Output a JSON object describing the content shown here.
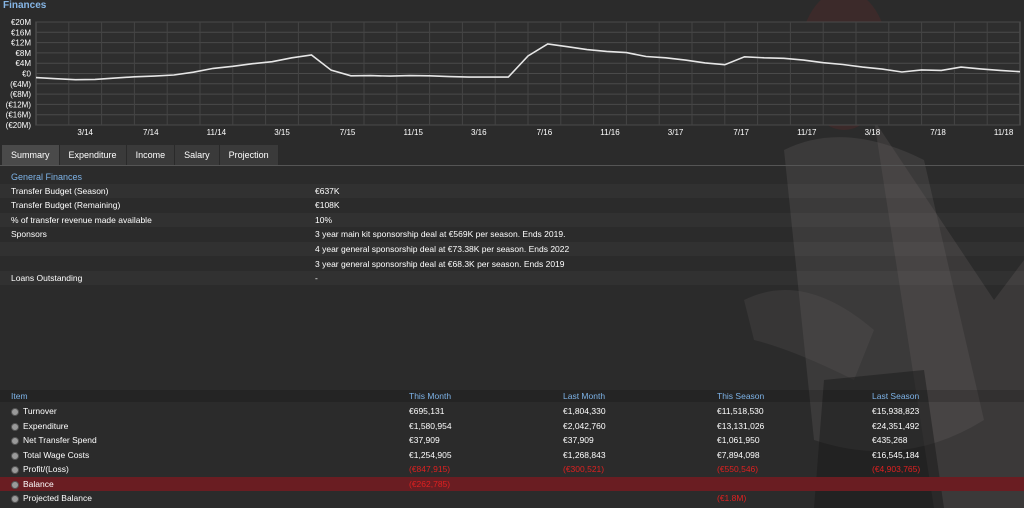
{
  "panel_title": "Finances",
  "chart_data": {
    "type": "line",
    "y_ticks": [
      "€20M",
      "€16M",
      "€12M",
      "€8M",
      "€4M",
      "€0",
      "(€4M)",
      "(€8M)",
      "(€12M)",
      "(€16M)",
      "(€20M)"
    ],
    "x_ticks": [
      "3/14",
      "7/14",
      "11/14",
      "3/15",
      "7/15",
      "11/15",
      "3/16",
      "7/16",
      "11/16",
      "3/17",
      "7/17",
      "11/17",
      "3/18",
      "7/18",
      "11/18"
    ],
    "ylim": [
      -20,
      20
    ],
    "yunit": "€M",
    "grid": true,
    "line_color": "#e6e6e6",
    "points": [
      [
        0,
        -1.6
      ],
      [
        0.5,
        -2.0
      ],
      [
        1,
        -2.4
      ],
      [
        1.5,
        -2.3
      ],
      [
        2,
        -1.8
      ],
      [
        2.5,
        -1.3
      ],
      [
        3,
        -1.0
      ],
      [
        3.5,
        -0.6
      ],
      [
        4,
        0.5
      ],
      [
        4.5,
        2.0
      ],
      [
        5,
        2.8
      ],
      [
        5.5,
        3.8
      ],
      [
        6,
        4.6
      ],
      [
        6.5,
        6.1
      ],
      [
        7,
        7.2
      ],
      [
        7.5,
        1.3
      ],
      [
        8,
        -0.9
      ],
      [
        8.5,
        -0.8
      ],
      [
        9,
        -1.0
      ],
      [
        9.5,
        -0.8
      ],
      [
        10,
        -0.9
      ],
      [
        10.5,
        -1.2
      ],
      [
        11,
        -1.4
      ],
      [
        11.5,
        -1.4
      ],
      [
        12,
        -1.4
      ],
      [
        12.5,
        6.8
      ],
      [
        13,
        11.5
      ],
      [
        13.5,
        10.4
      ],
      [
        14,
        9.3
      ],
      [
        14.5,
        8.6
      ],
      [
        15,
        8.1
      ],
      [
        15.5,
        6.6
      ],
      [
        16,
        6.1
      ],
      [
        16.5,
        5.2
      ],
      [
        17,
        4.1
      ],
      [
        17.5,
        3.4
      ],
      [
        18,
        6.5
      ],
      [
        18.5,
        6.1
      ],
      [
        19,
        5.9
      ],
      [
        19.5,
        5.2
      ],
      [
        20,
        4.2
      ],
      [
        20.5,
        3.5
      ],
      [
        21,
        2.5
      ],
      [
        21.5,
        1.7
      ],
      [
        22,
        0.6
      ],
      [
        22.5,
        1.4
      ],
      [
        23,
        1.2
      ],
      [
        23.5,
        2.5
      ],
      [
        24,
        1.8
      ],
      [
        24.5,
        1.2
      ],
      [
        25,
        0.7
      ]
    ],
    "x_max": 25
  },
  "tabs": [
    {
      "label": "Summary",
      "active": true
    },
    {
      "label": "Expenditure",
      "active": false
    },
    {
      "label": "Income",
      "active": false
    },
    {
      "label": "Salary",
      "active": false
    },
    {
      "label": "Projection",
      "active": false
    }
  ],
  "general_finances": {
    "header": "General Finances",
    "rows": [
      {
        "label": "Transfer Budget (Season)",
        "value": "€637K"
      },
      {
        "label": "Transfer Budget (Remaining)",
        "value": "€108K"
      },
      {
        "label": "% of transfer revenue made available",
        "value": "10%"
      },
      {
        "label": "Sponsors",
        "value": "3 year main kit sponsorship deal at €569K per season. Ends 2019."
      },
      {
        "label": "",
        "value": "4 year general sponsorship deal at €73.38K per season. Ends 2022"
      },
      {
        "label": "",
        "value": "3 year general sponsorship deal at €68.3K per season. Ends 2019"
      },
      {
        "label": "Loans Outstanding",
        "value": "-"
      }
    ]
  },
  "summary_table": {
    "headers": [
      "Item",
      "This Month",
      "Last Month",
      "This Season",
      "Last Season"
    ],
    "rows": [
      {
        "item": "Turnover",
        "values": [
          "€695,131",
          "€1,804,330",
          "€11,518,530",
          "€15,938,823"
        ],
        "neg": [
          false,
          false,
          false,
          false
        ]
      },
      {
        "item": "Expenditure",
        "values": [
          "€1,580,954",
          "€2,042,760",
          "€13,131,026",
          "€24,351,492"
        ],
        "neg": [
          false,
          false,
          false,
          false
        ]
      },
      {
        "item": "Net Transfer Spend",
        "values": [
          "€37,909",
          "€37,909",
          "€1,061,950",
          "€435,268"
        ],
        "neg": [
          false,
          false,
          false,
          false
        ]
      },
      {
        "item": "Total Wage Costs",
        "values": [
          "€1,254,905",
          "€1,268,843",
          "€7,894,098",
          "€16,545,184"
        ],
        "neg": [
          false,
          false,
          false,
          false
        ]
      },
      {
        "item": "Profit/(Loss)",
        "values": [
          "(€847,915)",
          "(€300,521)",
          "(€550,546)",
          "(€4,903,765)"
        ],
        "neg": [
          true,
          true,
          true,
          true
        ]
      },
      {
        "item": "Balance",
        "values": [
          "(€262,785)",
          "",
          "",
          ""
        ],
        "neg": [
          true,
          false,
          false,
          false
        ]
      },
      {
        "item": "Projected Balance",
        "values": [
          "",
          "",
          "(€1.8M)",
          ""
        ],
        "neg": [
          false,
          false,
          true,
          false
        ]
      }
    ]
  }
}
